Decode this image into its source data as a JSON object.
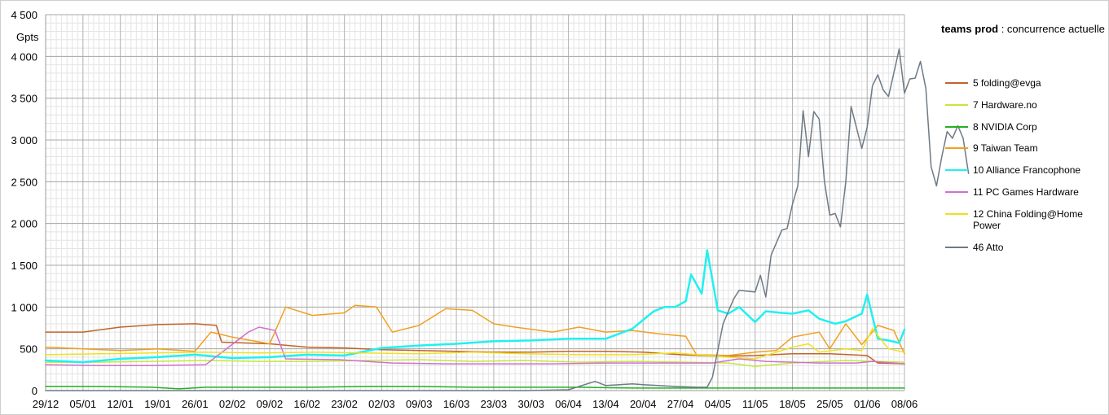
{
  "legend_header": {
    "bold": "teams prod",
    "rest": " : concurrence actuelle"
  },
  "chart_data": {
    "type": "line",
    "title": "teams prod : concurrence actuelle",
    "ylabel": "Gpts",
    "ylim": [
      0,
      4500
    ],
    "yticks": [
      0,
      500,
      1000,
      1500,
      2000,
      2500,
      3000,
      3500,
      4000,
      4500
    ],
    "ytick_labels": [
      "0",
      "500",
      "1 000",
      "1 500",
      "2 000",
      "2 500",
      "3 000",
      "3 500",
      "4 000",
      "4 500"
    ],
    "x_tick_labels": [
      "29/12",
      "05/01",
      "12/01",
      "19/01",
      "26/01",
      "02/02",
      "09/02",
      "16/02",
      "23/02",
      "02/03",
      "09/03",
      "16/03",
      "23/03",
      "30/03",
      "06/04",
      "13/04",
      "20/04",
      "27/04",
      "04/05",
      "11/05",
      "18/05",
      "25/05",
      "01/06",
      "08/06"
    ],
    "x_range_days": [
      0,
      161
    ],
    "grid": true,
    "legend_position": "right",
    "series": [
      {
        "name": "5 folding@evga",
        "color": "#c0642a",
        "width": 1.5,
        "points": [
          [
            0,
            700
          ],
          [
            7,
            700
          ],
          [
            14,
            760
          ],
          [
            21,
            790
          ],
          [
            28,
            800
          ],
          [
            32,
            780
          ],
          [
            33,
            580
          ],
          [
            42,
            560
          ],
          [
            49,
            520
          ],
          [
            56,
            510
          ],
          [
            63,
            490
          ],
          [
            70,
            480
          ],
          [
            77,
            470
          ],
          [
            84,
            460
          ],
          [
            91,
            460
          ],
          [
            98,
            470
          ],
          [
            105,
            470
          ],
          [
            112,
            460
          ],
          [
            119,
            430
          ],
          [
            126,
            410
          ],
          [
            133,
            420
          ],
          [
            140,
            440
          ],
          [
            147,
            440
          ],
          [
            154,
            420
          ],
          [
            156,
            330
          ],
          [
            161,
            320
          ]
        ]
      },
      {
        "name": "7 Hardware.no",
        "color": "#c4e838",
        "width": 1.5,
        "points": [
          [
            0,
            340
          ],
          [
            10,
            340
          ],
          [
            20,
            350
          ],
          [
            30,
            360
          ],
          [
            40,
            350
          ],
          [
            50,
            350
          ],
          [
            60,
            360
          ],
          [
            70,
            370
          ],
          [
            80,
            350
          ],
          [
            90,
            360
          ],
          [
            100,
            340
          ],
          [
            110,
            350
          ],
          [
            120,
            340
          ],
          [
            128,
            330
          ],
          [
            133,
            290
          ],
          [
            140,
            330
          ],
          [
            150,
            360
          ],
          [
            161,
            340
          ]
        ]
      },
      {
        "name": "8 NVIDIA Corp",
        "color": "#22b022",
        "width": 1.5,
        "points": [
          [
            0,
            50
          ],
          [
            10,
            50
          ],
          [
            20,
            40
          ],
          [
            25,
            20
          ],
          [
            30,
            40
          ],
          [
            40,
            40
          ],
          [
            50,
            40
          ],
          [
            60,
            50
          ],
          [
            70,
            50
          ],
          [
            80,
            40
          ],
          [
            90,
            40
          ],
          [
            100,
            40
          ],
          [
            110,
            30
          ],
          [
            120,
            30
          ],
          [
            130,
            30
          ],
          [
            140,
            30
          ],
          [
            150,
            30
          ],
          [
            161,
            30
          ]
        ]
      },
      {
        "name": "9 Taiwan Team",
        "color": "#f0a020",
        "width": 1.5,
        "points": [
          [
            0,
            520
          ],
          [
            14,
            480
          ],
          [
            21,
            500
          ],
          [
            28,
            470
          ],
          [
            31,
            700
          ],
          [
            35,
            640
          ],
          [
            42,
            560
          ],
          [
            45,
            1000
          ],
          [
            50,
            900
          ],
          [
            56,
            930
          ],
          [
            58,
            1020
          ],
          [
            62,
            1000
          ],
          [
            65,
            700
          ],
          [
            70,
            780
          ],
          [
            75,
            980
          ],
          [
            80,
            960
          ],
          [
            84,
            800
          ],
          [
            88,
            760
          ],
          [
            95,
            700
          ],
          [
            100,
            760
          ],
          [
            105,
            700
          ],
          [
            110,
            720
          ],
          [
            115,
            680
          ],
          [
            120,
            650
          ],
          [
            122,
            430
          ],
          [
            128,
            420
          ],
          [
            133,
            460
          ],
          [
            137,
            480
          ],
          [
            140,
            640
          ],
          [
            145,
            700
          ],
          [
            147,
            500
          ],
          [
            150,
            800
          ],
          [
            153,
            550
          ],
          [
            156,
            780
          ],
          [
            159,
            720
          ],
          [
            161,
            440
          ]
        ]
      },
      {
        "name": "10 Alliance Francophone",
        "color": "#21f0f0",
        "width": 2.5,
        "points": [
          [
            0,
            360
          ],
          [
            7,
            340
          ],
          [
            14,
            380
          ],
          [
            21,
            400
          ],
          [
            28,
            430
          ],
          [
            35,
            390
          ],
          [
            42,
            400
          ],
          [
            49,
            430
          ],
          [
            56,
            420
          ],
          [
            63,
            510
          ],
          [
            70,
            540
          ],
          [
            77,
            560
          ],
          [
            84,
            590
          ],
          [
            91,
            600
          ],
          [
            98,
            620
          ],
          [
            105,
            620
          ],
          [
            110,
            740
          ],
          [
            114,
            950
          ],
          [
            116,
            1000
          ],
          [
            118,
            1000
          ],
          [
            120,
            1070
          ],
          [
            121,
            1390
          ],
          [
            123,
            1160
          ],
          [
            124,
            1680
          ],
          [
            126,
            960
          ],
          [
            128,
            920
          ],
          [
            130,
            1000
          ],
          [
            133,
            820
          ],
          [
            135,
            950
          ],
          [
            138,
            930
          ],
          [
            140,
            920
          ],
          [
            143,
            960
          ],
          [
            145,
            860
          ],
          [
            148,
            800
          ],
          [
            150,
            830
          ],
          [
            153,
            920
          ],
          [
            154,
            1150
          ],
          [
            156,
            620
          ],
          [
            158,
            600
          ],
          [
            160,
            570
          ],
          [
            161,
            730
          ]
        ]
      },
      {
        "name": "11 PC Games Hardware",
        "color": "#d070d0",
        "width": 1.5,
        "points": [
          [
            0,
            310
          ],
          [
            10,
            300
          ],
          [
            20,
            300
          ],
          [
            30,
            310
          ],
          [
            38,
            700
          ],
          [
            40,
            760
          ],
          [
            43,
            720
          ],
          [
            45,
            380
          ],
          [
            55,
            370
          ],
          [
            65,
            330
          ],
          [
            75,
            320
          ],
          [
            85,
            320
          ],
          [
            95,
            320
          ],
          [
            105,
            330
          ],
          [
            115,
            330
          ],
          [
            125,
            330
          ],
          [
            130,
            380
          ],
          [
            135,
            350
          ],
          [
            145,
            330
          ],
          [
            152,
            330
          ],
          [
            155,
            350
          ],
          [
            161,
            320
          ]
        ]
      },
      {
        "name": "12 China Folding@Home Power",
        "color": "#f0e020",
        "width": 1.5,
        "points": [
          [
            0,
            430
          ],
          [
            10,
            440
          ],
          [
            20,
            450
          ],
          [
            30,
            460
          ],
          [
            40,
            450
          ],
          [
            50,
            460
          ],
          [
            60,
            450
          ],
          [
            70,
            440
          ],
          [
            80,
            460
          ],
          [
            90,
            440
          ],
          [
            100,
            430
          ],
          [
            110,
            430
          ],
          [
            118,
            450
          ],
          [
            124,
            420
          ],
          [
            128,
            400
          ],
          [
            133,
            380
          ],
          [
            140,
            520
          ],
          [
            143,
            560
          ],
          [
            145,
            460
          ],
          [
            150,
            500
          ],
          [
            153,
            480
          ],
          [
            155,
            740
          ],
          [
            158,
            500
          ],
          [
            161,
            460
          ]
        ]
      },
      {
        "name": "46 Atto",
        "color": "#6e7a85",
        "width": 1.5,
        "points": [
          [
            0,
            0
          ],
          [
            90,
            0
          ],
          [
            98,
            10
          ],
          [
            103,
            110
          ],
          [
            105,
            60
          ],
          [
            110,
            80
          ],
          [
            112,
            70
          ],
          [
            118,
            50
          ],
          [
            122,
            40
          ],
          [
            124,
            40
          ],
          [
            125,
            160
          ],
          [
            127,
            800
          ],
          [
            129,
            1100
          ],
          [
            130,
            1200
          ],
          [
            133,
            1180
          ],
          [
            134,
            1380
          ],
          [
            135,
            1120
          ],
          [
            136,
            1620
          ],
          [
            138,
            1920
          ],
          [
            139,
            1940
          ],
          [
            140,
            2230
          ],
          [
            141,
            2450
          ],
          [
            142,
            3350
          ],
          [
            143,
            2800
          ],
          [
            144,
            3340
          ],
          [
            145,
            3250
          ],
          [
            146,
            2500
          ],
          [
            147,
            2100
          ],
          [
            148,
            2120
          ],
          [
            149,
            1960
          ],
          [
            150,
            2500
          ],
          [
            151,
            3400
          ],
          [
            153,
            2900
          ],
          [
            154,
            3150
          ],
          [
            155,
            3650
          ],
          [
            156,
            3780
          ],
          [
            157,
            3600
          ],
          [
            158,
            3520
          ],
          [
            159,
            3800
          ],
          [
            160,
            4090
          ],
          [
            161,
            3560
          ],
          [
            162,
            3730
          ],
          [
            163,
            3740
          ],
          [
            164,
            3940
          ],
          [
            165,
            3620
          ],
          [
            166,
            2680
          ],
          [
            167,
            2450
          ],
          [
            168,
            2800
          ],
          [
            169,
            3100
          ],
          [
            170,
            3020
          ],
          [
            171,
            3170
          ],
          [
            172,
            3020
          ],
          [
            173,
            2600
          ]
        ]
      }
    ]
  }
}
